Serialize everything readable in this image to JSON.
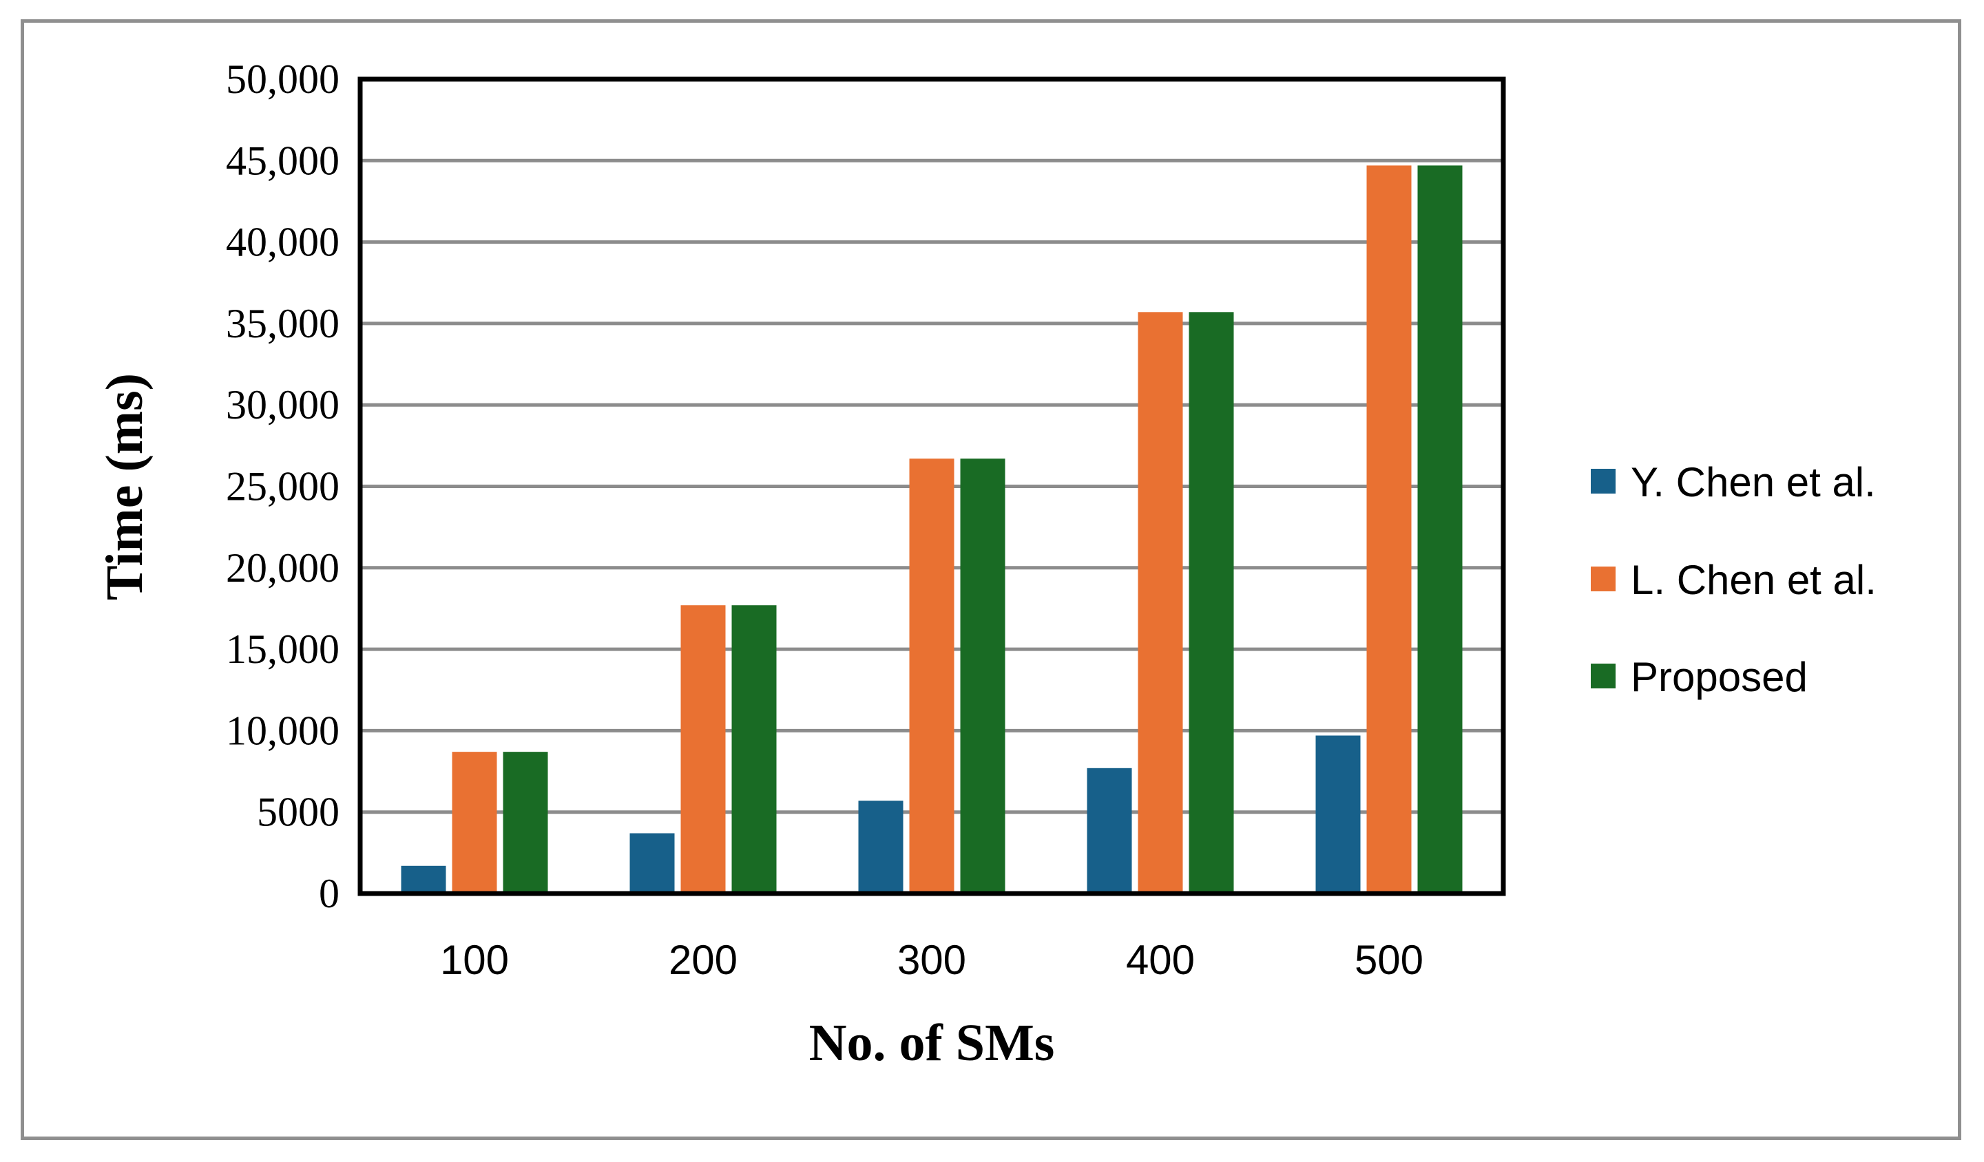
{
  "chart_data": {
    "type": "bar",
    "xlabel": "No. of SMs",
    "ylabel": "Time (ms)",
    "categories": [
      "100",
      "200",
      "300",
      "400",
      "500"
    ],
    "ylim": [
      0,
      50000
    ],
    "yticks": [
      0,
      5000,
      10000,
      15000,
      20000,
      25000,
      30000,
      35000,
      40000,
      45000,
      50000
    ],
    "ytick_labels": [
      "0",
      "5000",
      "10,000",
      "15,000",
      "20,000",
      "25,000",
      "30,000",
      "35,000",
      "40,000",
      "45,000",
      "50,000"
    ],
    "grid": true,
    "legend_position": "right",
    "series": [
      {
        "name": "Y. Chen et al.",
        "color": "#17608a",
        "values": [
          1700,
          3700,
          5700,
          7700,
          9700
        ]
      },
      {
        "name": "L. Chen et al.",
        "color": "#e97132",
        "values": [
          8700,
          17700,
          26700,
          35700,
          44700
        ]
      },
      {
        "name": "Proposed",
        "color": "#196b24",
        "values": [
          8700,
          17700,
          26700,
          35700,
          44700
        ]
      }
    ]
  }
}
